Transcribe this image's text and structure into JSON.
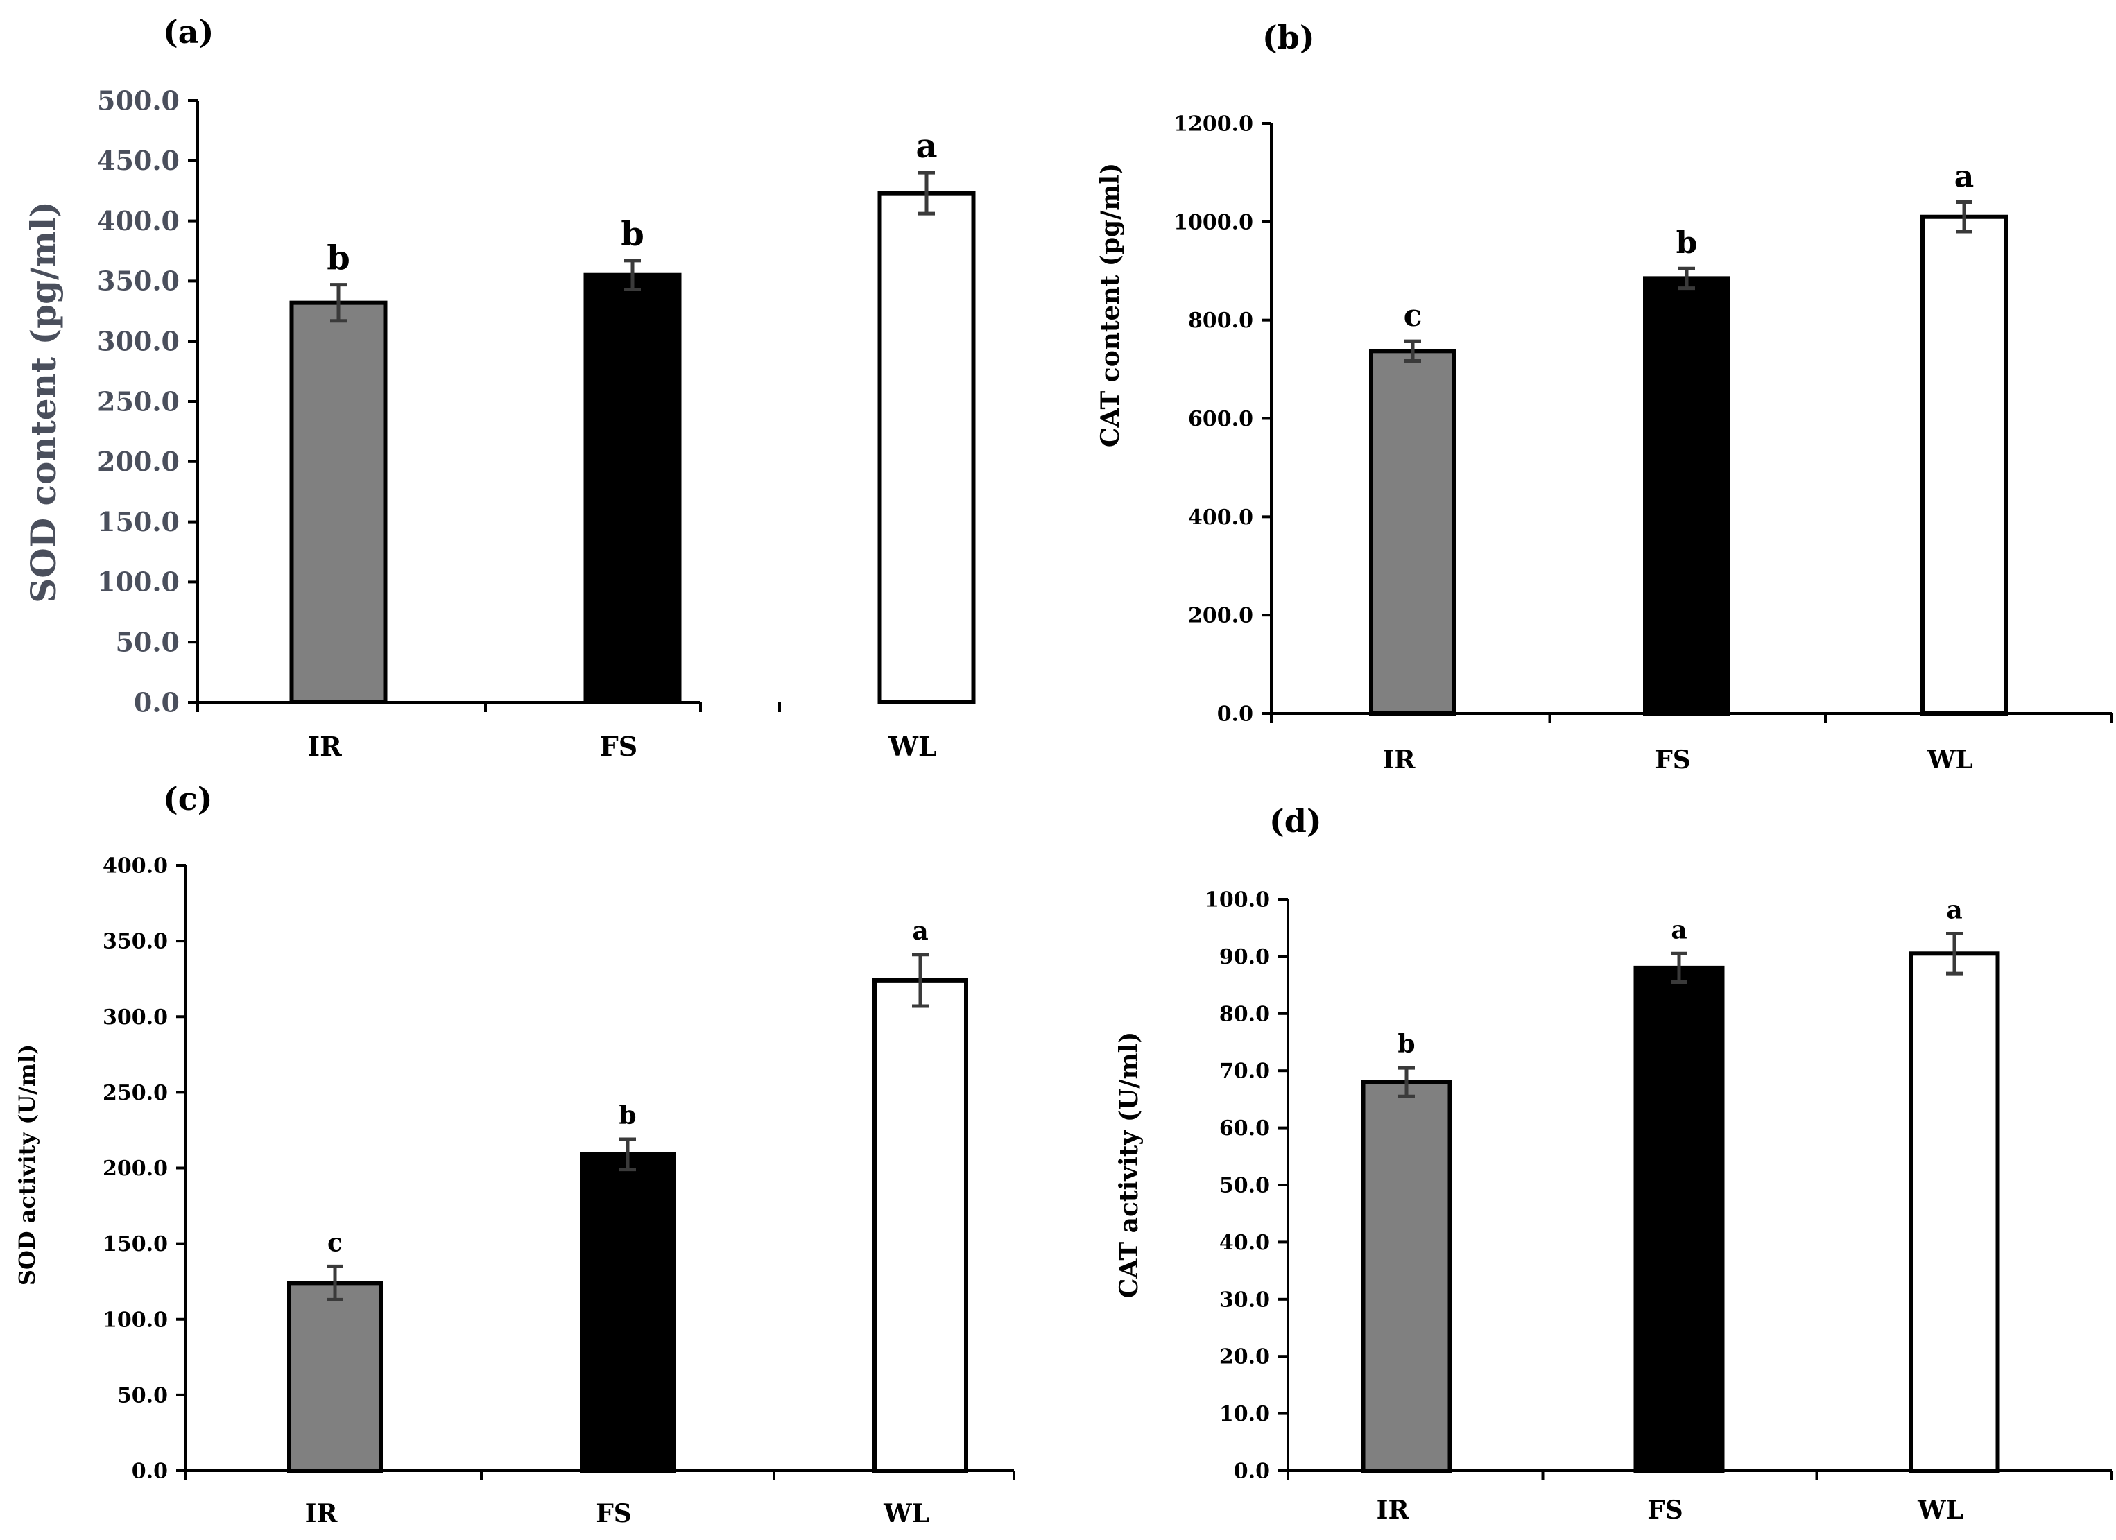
{
  "chart_data": [
    {
      "type": "bar",
      "panel_label": "(a)",
      "title": "",
      "xlabel": "",
      "ylabel": "SOD content (pg/ml)",
      "categories": [
        "IR",
        "FS",
        "WL"
      ],
      "values": [
        332,
        355,
        423
      ],
      "errors": [
        15,
        12,
        17
      ],
      "significance": [
        "b",
        "b",
        "a"
      ],
      "ylim": [
        0,
        500
      ],
      "yticks": [
        "0.0",
        "50.0",
        "100.0",
        "150.0",
        "200.0",
        "250.0",
        "300.0",
        "350.0",
        "400.0",
        "450.0",
        "500.0"
      ],
      "bar_colors": [
        "#808080",
        "#000000",
        "#ffffff"
      ],
      "grid": false
    },
    {
      "type": "bar",
      "panel_label": "(b)",
      "title": "",
      "xlabel": "",
      "ylabel": "CAT content (pg/ml)",
      "categories": [
        "IR",
        "FS",
        "WL"
      ],
      "values": [
        737,
        885,
        1010
      ],
      "errors": [
        20,
        20,
        30
      ],
      "significance": [
        "c",
        "b",
        "a"
      ],
      "ylim": [
        0,
        1200
      ],
      "yticks": [
        "0.0",
        "200.0",
        "400.0",
        "600.0",
        "800.0",
        "1000.0",
        "1200.0"
      ],
      "bar_colors": [
        "#808080",
        "#000000",
        "#ffffff"
      ],
      "grid": false
    },
    {
      "type": "bar",
      "panel_label": "(c)",
      "title": "",
      "xlabel": "",
      "ylabel": "SOD activity (U/ml)",
      "categories": [
        "IR",
        "FS",
        "WL"
      ],
      "values": [
        124,
        209,
        324
      ],
      "errors": [
        11,
        10,
        17
      ],
      "significance": [
        "c",
        "b",
        "a"
      ],
      "ylim": [
        0,
        400
      ],
      "yticks": [
        "0.0",
        "50.0",
        "100.0",
        "150.0",
        "200.0",
        "250.0",
        "300.0",
        "350.0",
        "400.0"
      ],
      "bar_colors": [
        "#808080",
        "#000000",
        "#ffffff"
      ],
      "grid": false
    },
    {
      "type": "bar",
      "panel_label": "(d)",
      "title": "",
      "xlabel": "",
      "ylabel": "CAT activity (U/ml)",
      "categories": [
        "IR",
        "FS",
        "WL"
      ],
      "values": [
        68,
        88,
        90.5
      ],
      "errors": [
        2.5,
        2.5,
        3.5
      ],
      "significance": [
        "b",
        "a",
        "a"
      ],
      "ylim": [
        0,
        100
      ],
      "yticks": [
        "0.0",
        "10.0",
        "20.0",
        "30.0",
        "40.0",
        "50.0",
        "60.0",
        "70.0",
        "80.0",
        "90.0",
        "100.0"
      ],
      "bar_colors": [
        "#808080",
        "#000000",
        "#ffffff"
      ],
      "grid": false
    }
  ]
}
